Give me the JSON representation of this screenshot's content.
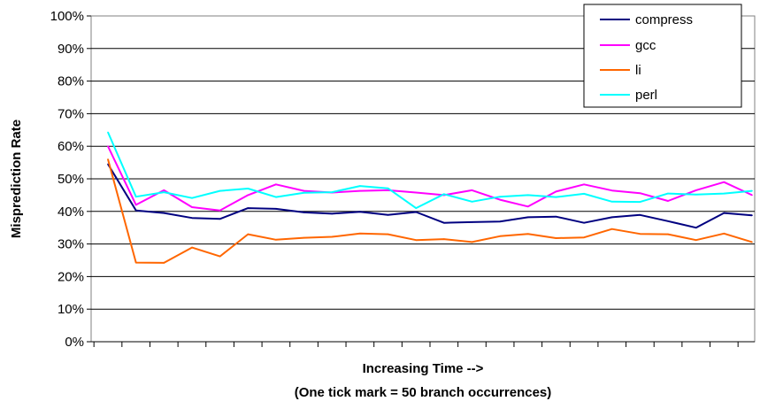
{
  "chart_data": {
    "type": "line",
    "title": "",
    "ylabel": "Misprediction Rate",
    "xlabel_lines": [
      "Increasing Time -->",
      "(One tick mark = 50 branch occurrences)"
    ],
    "ylim": [
      0,
      100
    ],
    "yticks": [
      0,
      10,
      20,
      30,
      40,
      50,
      60,
      70,
      80,
      90,
      100
    ],
    "ytick_labels": [
      "0%",
      "10%",
      "20%",
      "30%",
      "40%",
      "50%",
      "60%",
      "70%",
      "80%",
      "90%",
      "100%"
    ],
    "grid": true,
    "legend_position": "top-right",
    "x": [
      1,
      2,
      3,
      4,
      5,
      6,
      7,
      8,
      9,
      10,
      11,
      12,
      13,
      14,
      15,
      16,
      17,
      18,
      19,
      20,
      21,
      22,
      23,
      24
    ],
    "series": [
      {
        "name": "compress",
        "color": "#000080",
        "values": [
          54.5,
          40.3,
          39.5,
          38,
          37.7,
          41,
          40.8,
          39.7,
          39.3,
          39.9,
          38.9,
          39.8,
          36.5,
          36.7,
          36.9,
          38.2,
          38.4,
          36.5,
          38.2,
          38.9,
          37,
          35,
          39.5,
          38.8
        ]
      },
      {
        "name": "gcc",
        "color": "#ff00ff",
        "values": [
          60,
          42,
          46.5,
          41.3,
          40.3,
          45,
          48.3,
          46.3,
          45.8,
          46.3,
          46.5,
          45.8,
          45,
          46.5,
          43.6,
          41.5,
          46.1,
          48.3,
          46.4,
          45.6,
          43.2,
          46.5,
          49,
          45
        ]
      },
      {
        "name": "li",
        "color": "#ff6600",
        "values": [
          56,
          24.3,
          24.2,
          28.9,
          26.2,
          33,
          31.3,
          31.9,
          32.2,
          33.2,
          33,
          31.2,
          31.5,
          30.6,
          32.4,
          33.1,
          31.8,
          32,
          34.6,
          33.1,
          33,
          31.2,
          33.2,
          30.6
        ]
      },
      {
        "name": "perl",
        "color": "#00ffff",
        "values": [
          64.3,
          44.5,
          45.9,
          44.1,
          46.3,
          47,
          44.4,
          45.7,
          45.9,
          47.8,
          47.1,
          41,
          45.3,
          43,
          44.5,
          45,
          44.4,
          45.4,
          43,
          42.9,
          45.5,
          45.2,
          45.5,
          46.3
        ]
      }
    ]
  }
}
